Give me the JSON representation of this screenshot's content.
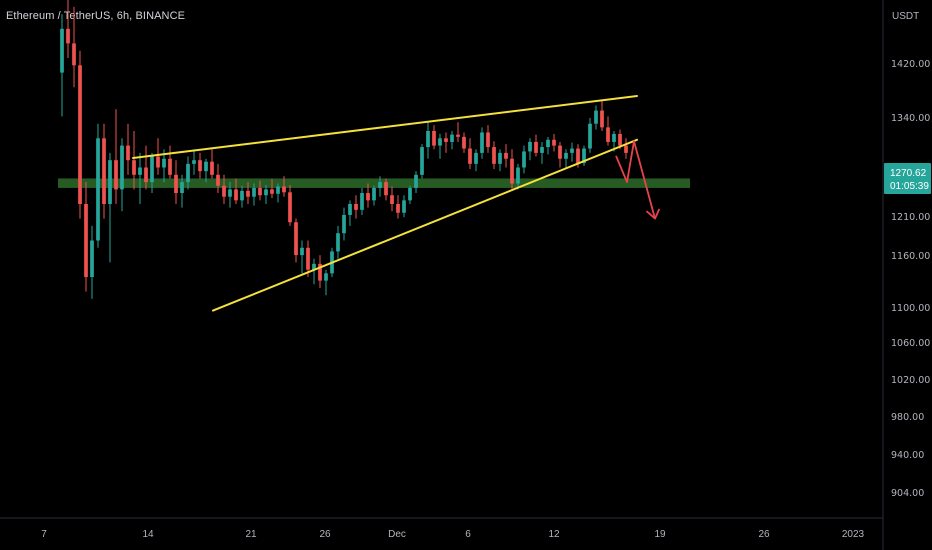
{
  "header": {
    "title": "Ethereum / TetherUS, 6h, BINANCE"
  },
  "colors": {
    "background": "#000000",
    "up": "#26a69a",
    "down": "#ef5350",
    "trendline": "#f5e13b",
    "zone": "#2e6b2a",
    "arrow": "#e8434a",
    "axis_text": "#b2b5be",
    "price_tag": "#26a69a"
  },
  "chart_data": {
    "type": "candlestick",
    "symbol": "Ethereum / TetherUS",
    "interval": "6h",
    "exchange": "BINANCE",
    "y_unit": "USDT",
    "y_range": [
      870,
      1480
    ],
    "y_ticks": [
      "1420.00",
      "1340.00",
      "1270.62",
      "1210.00",
      "1160.00",
      "1100.00",
      "1060.00",
      "1020.00",
      "980.00",
      "940.00",
      "904.00"
    ],
    "x_ticks": [
      "7",
      "14",
      "21",
      "26",
      "Dec",
      "6",
      "12",
      "19",
      "26",
      "2023"
    ],
    "last_price": "1270.62",
    "countdown": "01:05:39",
    "zone": {
      "price_low": 1222,
      "price_high": 1235,
      "date_start": "Nov 8",
      "date_end": "Dec 21"
    },
    "trendlines": [
      {
        "from": [
          "Nov 13",
          1263
        ],
        "to": [
          "Dec 17",
          1348
        ]
      },
      {
        "from": [
          "Nov 18",
          1054
        ],
        "to": [
          "Dec 17",
          1288
        ]
      }
    ],
    "projection": [
      [
        "Dec 16",
        1266
      ],
      [
        "Dec 17",
        1230
      ],
      [
        "Dec 17",
        1286
      ],
      [
        "Dec 18",
        1180
      ]
    ],
    "candles": [
      [
        1380,
        1460,
        1320,
        1440
      ],
      [
        1440,
        1480,
        1400,
        1420
      ],
      [
        1420,
        1470,
        1360,
        1390
      ],
      [
        1390,
        1410,
        1180,
        1200
      ],
      [
        1200,
        1230,
        1080,
        1100
      ],
      [
        1100,
        1170,
        1070,
        1150
      ],
      [
        1150,
        1310,
        1140,
        1290
      ],
      [
        1290,
        1310,
        1180,
        1200
      ],
      [
        1200,
        1270,
        1120,
        1260
      ],
      [
        1260,
        1330,
        1200,
        1220
      ],
      [
        1220,
        1290,
        1190,
        1280
      ],
      [
        1280,
        1310,
        1240,
        1260
      ],
      [
        1260,
        1300,
        1220,
        1240
      ],
      [
        1240,
        1270,
        1200,
        1250
      ],
      [
        1250,
        1280,
        1220,
        1230
      ],
      [
        1230,
        1270,
        1215,
        1265
      ],
      [
        1265,
        1290,
        1240,
        1250
      ],
      [
        1250,
        1275,
        1230,
        1262
      ],
      [
        1262,
        1280,
        1235,
        1240
      ],
      [
        1240,
        1260,
        1200,
        1215
      ],
      [
        1215,
        1240,
        1195,
        1230
      ],
      [
        1230,
        1265,
        1220,
        1255
      ],
      [
        1255,
        1275,
        1240,
        1260
      ],
      [
        1260,
        1270,
        1235,
        1245
      ],
      [
        1245,
        1262,
        1230,
        1258
      ],
      [
        1258,
        1275,
        1235,
        1240
      ],
      [
        1240,
        1255,
        1215,
        1225
      ],
      [
        1225,
        1240,
        1200,
        1210
      ],
      [
        1210,
        1230,
        1195,
        1220
      ],
      [
        1220,
        1235,
        1200,
        1205
      ],
      [
        1205,
        1225,
        1195,
        1218
      ],
      [
        1218,
        1230,
        1200,
        1210
      ],
      [
        1210,
        1228,
        1198,
        1222
      ],
      [
        1222,
        1232,
        1205,
        1212
      ],
      [
        1212,
        1226,
        1200,
        1220
      ],
      [
        1220,
        1234,
        1208,
        1214
      ],
      [
        1214,
        1228,
        1202,
        1224
      ],
      [
        1224,
        1238,
        1210,
        1216
      ],
      [
        1216,
        1226,
        1170,
        1175
      ],
      [
        1175,
        1180,
        1120,
        1130
      ],
      [
        1130,
        1150,
        1105,
        1140
      ],
      [
        1140,
        1150,
        1100,
        1110
      ],
      [
        1110,
        1125,
        1090,
        1118
      ],
      [
        1118,
        1130,
        1085,
        1095
      ],
      [
        1095,
        1110,
        1075,
        1105
      ],
      [
        1105,
        1140,
        1100,
        1135
      ],
      [
        1135,
        1170,
        1125,
        1160
      ],
      [
        1160,
        1195,
        1150,
        1185
      ],
      [
        1185,
        1205,
        1170,
        1200
      ],
      [
        1200,
        1212,
        1180,
        1192
      ],
      [
        1192,
        1222,
        1185,
        1215
      ],
      [
        1215,
        1228,
        1195,
        1205
      ],
      [
        1205,
        1225,
        1198,
        1222
      ],
      [
        1222,
        1238,
        1210,
        1230
      ],
      [
        1230,
        1235,
        1205,
        1212
      ],
      [
        1212,
        1224,
        1190,
        1200
      ],
      [
        1200,
        1212,
        1180,
        1188
      ],
      [
        1188,
        1212,
        1182,
        1205
      ],
      [
        1205,
        1225,
        1200,
        1222
      ],
      [
        1222,
        1245,
        1215,
        1240
      ],
      [
        1240,
        1282,
        1235,
        1278
      ],
      [
        1278,
        1312,
        1262,
        1300
      ],
      [
        1300,
        1308,
        1275,
        1280
      ],
      [
        1280,
        1296,
        1262,
        1290
      ],
      [
        1290,
        1298,
        1270,
        1285
      ],
      [
        1285,
        1300,
        1275,
        1295
      ],
      [
        1295,
        1312,
        1285,
        1292
      ],
      [
        1292,
        1298,
        1270,
        1276
      ],
      [
        1276,
        1290,
        1248,
        1255
      ],
      [
        1255,
        1275,
        1245,
        1270
      ],
      [
        1270,
        1305,
        1262,
        1298
      ],
      [
        1298,
        1308,
        1270,
        1278
      ],
      [
        1278,
        1286,
        1248,
        1255
      ],
      [
        1255,
        1275,
        1245,
        1270
      ],
      [
        1270,
        1282,
        1250,
        1262
      ],
      [
        1262,
        1275,
        1220,
        1228
      ],
      [
        1228,
        1255,
        1220,
        1250
      ],
      [
        1250,
        1280,
        1242,
        1272
      ],
      [
        1272,
        1290,
        1260,
        1285
      ],
      [
        1285,
        1295,
        1265,
        1270
      ],
      [
        1270,
        1285,
        1255,
        1278
      ],
      [
        1278,
        1292,
        1268,
        1288
      ],
      [
        1288,
        1296,
        1272,
        1280
      ],
      [
        1280,
        1285,
        1250,
        1262
      ],
      [
        1262,
        1275,
        1248,
        1270
      ],
      [
        1270,
        1284,
        1258,
        1276
      ],
      [
        1276,
        1282,
        1250,
        1256
      ],
      [
        1256,
        1280,
        1252,
        1276
      ],
      [
        1276,
        1318,
        1270,
        1310
      ],
      [
        1310,
        1335,
        1302,
        1328
      ],
      [
        1328,
        1342,
        1300,
        1305
      ],
      [
        1305,
        1320,
        1280,
        1285
      ],
      [
        1285,
        1300,
        1272,
        1296
      ],
      [
        1296,
        1302,
        1275,
        1280
      ],
      [
        1280,
        1290,
        1262,
        1270
      ]
    ]
  }
}
